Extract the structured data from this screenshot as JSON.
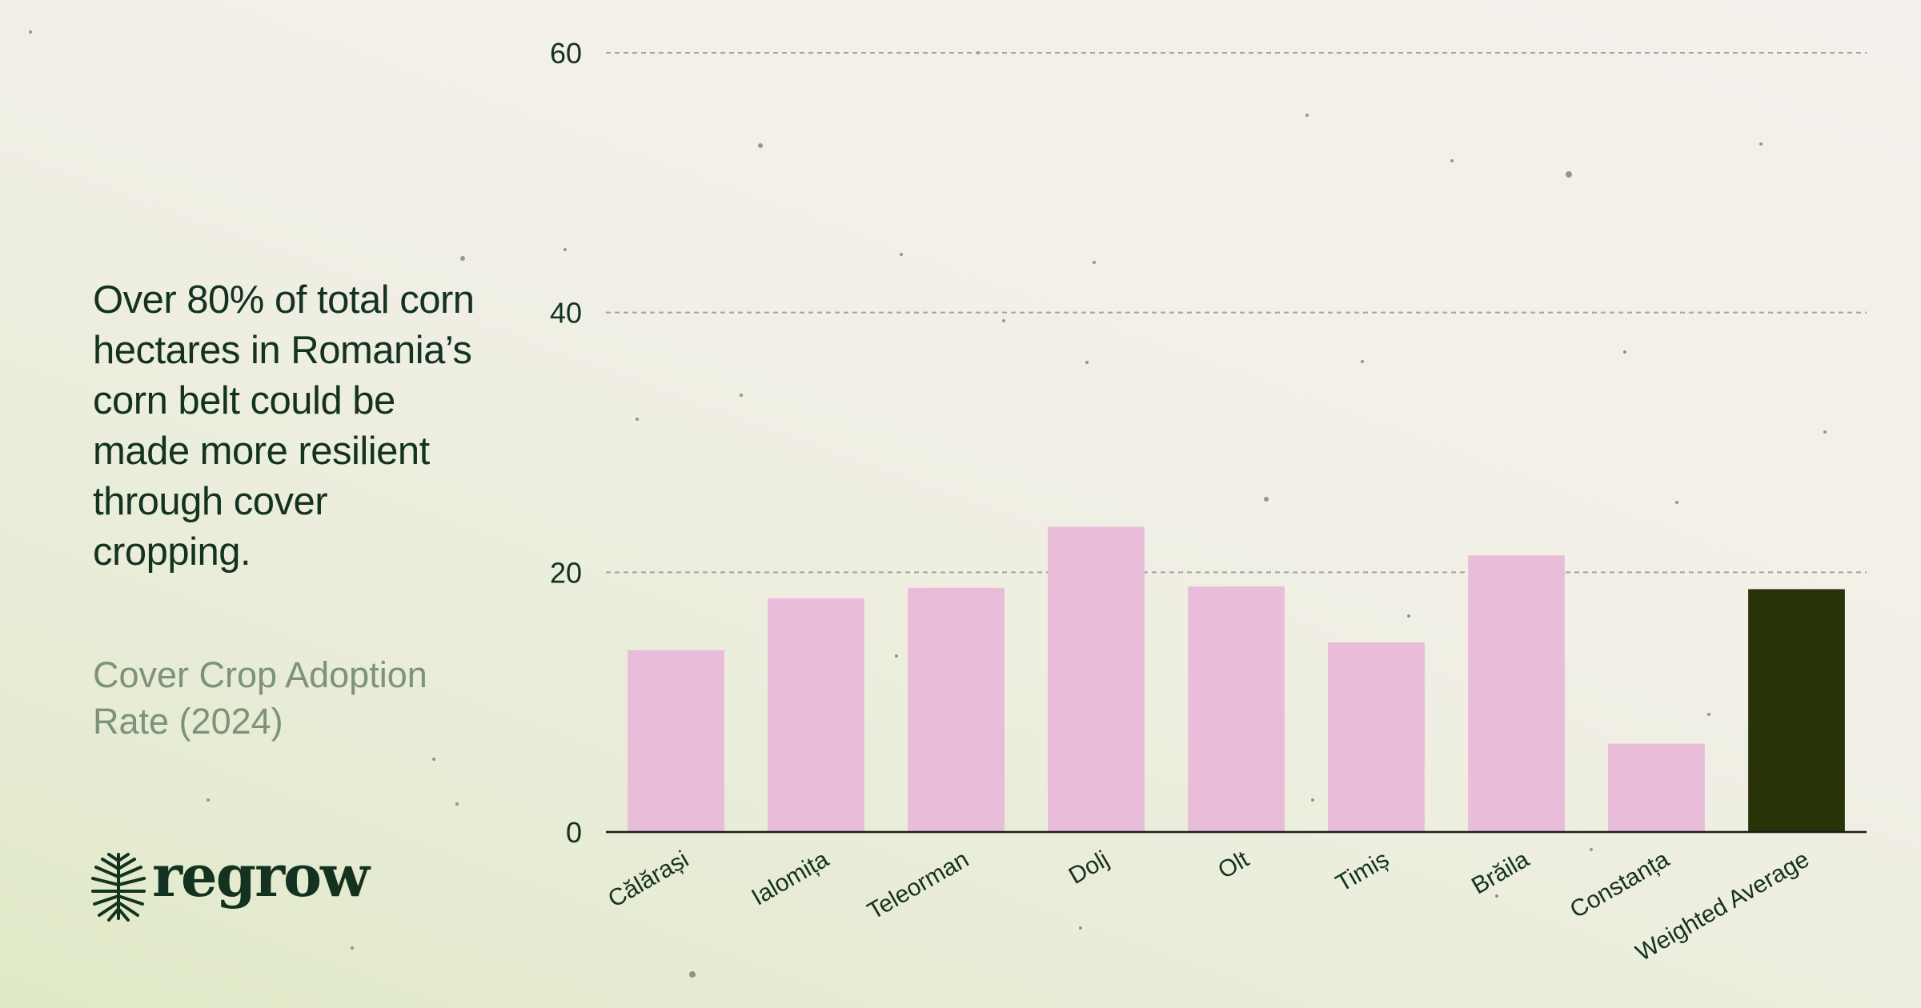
{
  "headline": "Over 80% of total corn hectares in Romania’s corn belt could be made more resilient through cover cropping.",
  "subtitle": "Cover Crop Adoption Rate (2024)",
  "logo": {
    "text": "regrow",
    "icon": "tree-roots-icon"
  },
  "colors": {
    "bar": "#e9bcda",
    "highlight_bar": "#283407",
    "text_dark": "#13321f",
    "subtitle": "#7d927a",
    "grid": "#a3a39c",
    "axis": "#1c1c1c"
  },
  "chart_data": {
    "type": "bar",
    "categories": [
      "Călărași",
      "Ialomița",
      "Teleorman",
      "Dolj",
      "Olt",
      "Timiș",
      "Brăila",
      "Constanța",
      "Weighted Average"
    ],
    "values": [
      14,
      18,
      18.8,
      23.5,
      18.9,
      14.6,
      21.3,
      6.8,
      18.7
    ],
    "highlight": "Weighted Average",
    "ylim": [
      0,
      60
    ],
    "yticks": [
      0,
      20,
      40,
      60
    ],
    "ytick_labels": [
      "0",
      "20",
      "40",
      "60"
    ],
    "grid": true,
    "legend": false
  }
}
